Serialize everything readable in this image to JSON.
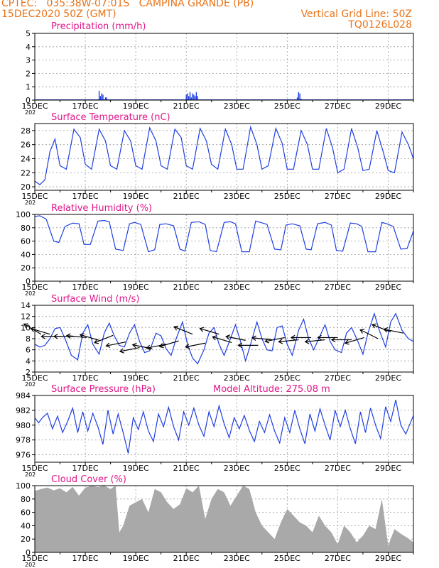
{
  "header": {
    "line1_left": "CPTEC:   035:38W-07:01S   CAMPINA GRANDE (PB)",
    "line2_left": "15DEC2020 50Z (GMT)",
    "line2_right": "Vertical Grid Line: 50Z",
    "line3_right": "TQ0126L028",
    "title_color": "#e8731a",
    "panel_title_color": "#e0198a",
    "series_color": "#1f3fe0",
    "cloud_color": "#a9a9a9"
  },
  "x_axis": {
    "tick_labels": [
      "15DEC",
      "17DEC",
      "19DEC",
      "21DEC",
      "23DEC",
      "25DEC",
      "27DEC",
      "29DEC"
    ],
    "year_fragment": "202",
    "day_range": [
      0,
      15
    ]
  },
  "chart_data": [
    {
      "type": "bar",
      "title": "Precipitation (mm/h)",
      "ylim": [
        0,
        5
      ],
      "yticks": [
        "0",
        "1",
        "2",
        "3",
        "4",
        "5"
      ],
      "x": [
        2.55,
        2.6,
        2.65,
        2.7,
        2.8,
        2.85,
        6.0,
        6.05,
        6.1,
        6.15,
        6.2,
        6.25,
        6.3,
        6.35,
        6.4,
        6.45,
        10.4,
        10.45,
        10.5,
        10.55
      ],
      "values": [
        0.7,
        0.3,
        0.5,
        0.4,
        0.2,
        0.2,
        0.4,
        0.5,
        0.3,
        0.6,
        0.2,
        0.5,
        0.4,
        0.3,
        0.6,
        0.3,
        0.2,
        0.6,
        0.5,
        0.1
      ]
    },
    {
      "type": "line",
      "title": "Surface Temperature (nC)",
      "ylim": [
        19.5,
        29
      ],
      "yticks": [
        "20",
        "22",
        "24",
        "26",
        "28"
      ],
      "x": [
        0.0,
        0.2,
        0.4,
        0.6,
        0.8,
        1.0,
        1.25,
        1.55,
        1.8,
        2.0,
        2.25,
        2.55,
        2.8,
        3.0,
        3.25,
        3.55,
        3.8,
        4.0,
        4.25,
        4.55,
        4.8,
        5.0,
        5.25,
        5.55,
        5.8,
        6.0,
        6.25,
        6.55,
        6.8,
        7.0,
        7.25,
        7.55,
        7.8,
        8.0,
        8.25,
        8.55,
        8.8,
        9.0,
        9.25,
        9.55,
        9.8,
        10.0,
        10.25,
        10.55,
        10.8,
        11.0,
        11.25,
        11.55,
        11.8,
        12.0,
        12.25,
        12.55,
        12.8,
        13.0,
        13.25,
        13.55,
        13.8,
        14.0,
        14.25,
        14.55,
        14.8,
        15.0
      ],
      "y": [
        20.8,
        20.3,
        21.0,
        25.0,
        26.8,
        23.0,
        22.5,
        28.2,
        27.0,
        23.2,
        22.5,
        28.2,
        26.5,
        23.0,
        22.5,
        28.0,
        26.5,
        23.0,
        22.5,
        28.4,
        26.5,
        23.0,
        22.5,
        28.2,
        27.0,
        23.0,
        22.5,
        28.3,
        26.5,
        23.2,
        22.5,
        28.2,
        26.0,
        22.5,
        22.5,
        28.5,
        26.0,
        22.5,
        23.0,
        28.3,
        26.2,
        22.5,
        22.5,
        28.0,
        26.0,
        22.5,
        22.5,
        28.3,
        25.5,
        22.0,
        22.5,
        28.3,
        25.5,
        22.3,
        22.5,
        28.0,
        25.0,
        22.3,
        22.0,
        27.8,
        26.0,
        24.0
      ]
    },
    {
      "type": "line",
      "title": "Relative Humidity (%)",
      "ylim": [
        0,
        100
      ],
      "yticks": [
        "0",
        "20",
        "40",
        "60",
        "80",
        "100"
      ],
      "x": [
        0.0,
        0.2,
        0.45,
        0.75,
        0.95,
        1.2,
        1.5,
        1.75,
        1.95,
        2.2,
        2.5,
        2.75,
        2.95,
        3.2,
        3.5,
        3.75,
        3.95,
        4.2,
        4.5,
        4.75,
        4.95,
        5.2,
        5.5,
        5.75,
        5.95,
        6.2,
        6.5,
        6.75,
        6.95,
        7.2,
        7.5,
        7.75,
        7.95,
        8.2,
        8.5,
        8.75,
        8.95,
        9.2,
        9.5,
        9.75,
        9.95,
        10.2,
        10.5,
        10.75,
        10.95,
        11.2,
        11.5,
        11.75,
        11.95,
        12.2,
        12.5,
        12.75,
        12.95,
        13.2,
        13.5,
        13.75,
        13.95,
        14.2,
        14.5,
        14.75,
        15.0
      ],
      "y": [
        97,
        98,
        93,
        60,
        58,
        82,
        87,
        86,
        55,
        55,
        90,
        91,
        89,
        48,
        46,
        86,
        88,
        85,
        44,
        47,
        85,
        86,
        83,
        48,
        45,
        88,
        89,
        85,
        46,
        44,
        88,
        89,
        86,
        44,
        44,
        90,
        88,
        85,
        48,
        47,
        84,
        86,
        83,
        48,
        47,
        86,
        88,
        84,
        46,
        45,
        87,
        86,
        82,
        44,
        44,
        88,
        86,
        82,
        48,
        49,
        75
      ]
    },
    {
      "type": "line",
      "title": "Surface Wind (m/s)",
      "ylim": [
        2,
        14
      ],
      "yticks": [
        "2",
        "4",
        "6",
        "8",
        "10",
        "12",
        "14"
      ],
      "x": [
        0.0,
        0.2,
        0.4,
        0.6,
        0.8,
        1.0,
        1.2,
        1.45,
        1.7,
        1.9,
        2.1,
        2.3,
        2.55,
        2.75,
        2.95,
        3.15,
        3.35,
        3.55,
        3.75,
        3.95,
        4.15,
        4.35,
        4.55,
        4.8,
        5.0,
        5.2,
        5.4,
        5.6,
        5.85,
        6.05,
        6.25,
        6.45,
        6.7,
        6.9,
        7.1,
        7.3,
        7.5,
        7.75,
        7.95,
        8.15,
        8.35,
        8.55,
        8.8,
        9.0,
        9.2,
        9.4,
        9.6,
        9.8,
        10.0,
        10.2,
        10.45,
        10.65,
        10.85,
        11.05,
        11.3,
        11.5,
        11.7,
        11.9,
        12.15,
        12.35,
        12.55,
        12.8,
        13.0,
        13.2,
        13.45,
        13.65,
        13.9,
        14.1,
        14.3,
        14.55,
        14.8,
        15.0
      ],
      "y": [
        7.0,
        6.5,
        6.8,
        8.0,
        9.8,
        10.0,
        8.0,
        5.0,
        4.2,
        9.0,
        10.5,
        7.0,
        5.2,
        9.0,
        10.8,
        8.5,
        6.8,
        6.5,
        9.0,
        10.5,
        7.5,
        5.5,
        5.8,
        9.0,
        8.5,
        6.2,
        5.0,
        8.0,
        11.0,
        7.0,
        4.5,
        3.5,
        6.0,
        9.0,
        10.0,
        7.0,
        5.0,
        8.0,
        10.5,
        7.5,
        4.0,
        7.0,
        11.0,
        8.0,
        6.0,
        5.8,
        10.0,
        10.3,
        7.0,
        5.0,
        9.5,
        11.5,
        8.0,
        6.0,
        8.5,
        10.5,
        7.5,
        6.0,
        5.5,
        9.0,
        10.0,
        7.5,
        5.2,
        9.0,
        12.5,
        9.5,
        6.5,
        11.0,
        12.5,
        9.5,
        8.0,
        7.5
      ],
      "vectors": {
        "x": [
          0.25,
          0.6,
          1.05,
          1.55,
          2.05,
          2.55,
          3.1,
          3.6,
          4.15,
          4.65,
          5.2,
          5.7,
          6.25,
          6.75,
          7.3,
          7.8,
          8.35,
          8.85,
          9.4,
          9.9,
          10.45,
          10.95,
          11.5,
          12.0,
          12.55,
          13.05,
          13.6,
          14.1,
          14.6
        ],
        "y": [
          8.8,
          8.8,
          8.4,
          8.4,
          8.2,
          7.7,
          8.6,
          7.4,
          6.4,
          6.2,
          7.0,
          7.6,
          8.8,
          7.2,
          8.8,
          7.3,
          7.7,
          6.8,
          7.8,
          8.2,
          7.8,
          8.2,
          7.8,
          8.2,
          7.8,
          8.2,
          8.0,
          9.2,
          9.0
        ],
        "u": [
          -1.0,
          -1.0,
          -1.0,
          -1.0,
          -1.0,
          -1.0,
          -1.0,
          -1.0,
          -1.0,
          -1.0,
          -1.0,
          -1.0,
          -1.0,
          -1.0,
          -1.0,
          -1.0,
          -1.0,
          -1.0,
          -1.0,
          -1.0,
          -1.0,
          -1.0,
          -1.0,
          -1.0,
          -1.0,
          -1.0,
          -1.0,
          -1.0,
          -1.0
        ],
        "v": [
          0.6,
          0.3,
          0.0,
          0.0,
          0.1,
          0.3,
          -0.4,
          -0.2,
          -0.2,
          0.2,
          -0.2,
          -0.3,
          0.4,
          -0.2,
          0.3,
          0.3,
          0.2,
          0.0,
          0.1,
          -0.2,
          -0.1,
          0.0,
          -0.1,
          0.0,
          0.0,
          -0.3,
          0.5,
          0.4,
          0.2
        ]
      }
    },
    {
      "type": "line",
      "title": "Surface Pressure (hPa)",
      "annotation": "Model Altitude: 275.08 m",
      "ylim": [
        975,
        984
      ],
      "yticks": [
        "976",
        "978",
        "980",
        "982",
        "984"
      ],
      "x": [
        0.0,
        0.15,
        0.3,
        0.5,
        0.7,
        0.9,
        1.1,
        1.3,
        1.5,
        1.7,
        1.9,
        2.1,
        2.3,
        2.5,
        2.7,
        2.9,
        3.1,
        3.3,
        3.5,
        3.7,
        3.9,
        4.1,
        4.3,
        4.5,
        4.7,
        4.9,
        5.1,
        5.3,
        5.5,
        5.7,
        5.9,
        6.1,
        6.3,
        6.5,
        6.7,
        6.9,
        7.1,
        7.3,
        7.5,
        7.7,
        7.9,
        8.1,
        8.3,
        8.5,
        8.7,
        8.9,
        9.1,
        9.3,
        9.5,
        9.7,
        9.9,
        10.1,
        10.3,
        10.5,
        10.7,
        10.9,
        11.1,
        11.3,
        11.5,
        11.7,
        11.9,
        12.1,
        12.3,
        12.5,
        12.7,
        12.9,
        13.1,
        13.3,
        13.5,
        13.7,
        13.9,
        14.1,
        14.3,
        14.5,
        14.7,
        15.0
      ],
      "y": [
        981.0,
        980.3,
        981.0,
        981.6,
        979.5,
        981.2,
        979.0,
        980.5,
        982.3,
        979.0,
        981.8,
        979.2,
        981.6,
        979.8,
        977.4,
        982.0,
        978.8,
        981.5,
        979.0,
        976.2,
        981.0,
        979.4,
        981.8,
        979.2,
        977.8,
        981.5,
        979.8,
        982.4,
        979.8,
        978.0,
        981.8,
        980.0,
        982.3,
        980.0,
        978.5,
        981.8,
        979.8,
        982.6,
        980.2,
        978.3,
        981.0,
        979.5,
        981.3,
        979.3,
        977.8,
        980.5,
        979.0,
        981.4,
        979.2,
        977.6,
        981.0,
        979.0,
        982.0,
        979.5,
        977.5,
        981.5,
        979.2,
        982.2,
        980.0,
        978.0,
        982.0,
        979.8,
        982.0,
        979.5,
        977.5,
        981.8,
        979.0,
        982.3,
        980.0,
        978.2,
        982.5,
        980.5,
        983.4,
        980.0,
        978.8,
        981.3
      ]
    },
    {
      "type": "area",
      "title": "Cloud Cover (%)",
      "ylim": [
        0,
        100
      ],
      "yticks": [
        "0",
        "20",
        "40",
        "60",
        "80",
        "100"
      ],
      "x": [
        0.0,
        0.25,
        0.5,
        0.75,
        1.0,
        1.25,
        1.5,
        1.75,
        2.0,
        2.25,
        2.5,
        2.75,
        3.0,
        3.2,
        3.35,
        3.5,
        3.75,
        4.0,
        4.25,
        4.5,
        4.75,
        5.0,
        5.25,
        5.5,
        5.75,
        6.0,
        6.25,
        6.5,
        6.75,
        7.0,
        7.25,
        7.5,
        7.75,
        8.0,
        8.25,
        8.5,
        8.75,
        9.0,
        9.25,
        9.5,
        9.75,
        10.0,
        10.25,
        10.5,
        10.75,
        11.0,
        11.25,
        11.5,
        11.75,
        12.0,
        12.25,
        12.5,
        12.75,
        13.0,
        13.25,
        13.5,
        13.75,
        14.0,
        14.25,
        14.5,
        14.75,
        15.0
      ],
      "values": [
        92,
        95,
        97,
        93,
        96,
        90,
        98,
        85,
        97,
        100,
        98,
        100,
        95,
        100,
        30,
        40,
        70,
        75,
        80,
        60,
        95,
        90,
        75,
        65,
        72,
        96,
        90,
        100,
        50,
        80,
        95,
        90,
        70,
        85,
        100,
        95,
        60,
        40,
        30,
        20,
        45,
        65,
        55,
        45,
        40,
        30,
        55,
        40,
        30,
        12,
        40,
        30,
        15,
        25,
        40,
        35,
        80,
        10,
        35,
        28,
        22,
        15
      ]
    }
  ]
}
